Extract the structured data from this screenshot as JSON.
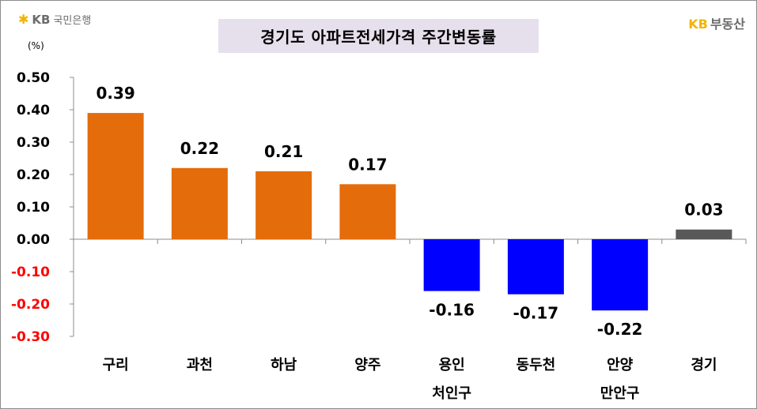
{
  "logos": {
    "left_brand": "KB",
    "left_name": "국민은행",
    "right_brand": "KB",
    "right_name": "부동산"
  },
  "chart_data": {
    "type": "bar",
    "title": "경기도 아파트전세가격 주간변동률",
    "unit_label": "(%)",
    "categories": [
      [
        "구리"
      ],
      [
        "과천"
      ],
      [
        "하남"
      ],
      [
        "양주"
      ],
      [
        "용인",
        "처인구"
      ],
      [
        "동두천"
      ],
      [
        "안양",
        "만안구"
      ],
      [
        "경기"
      ]
    ],
    "values": [
      0.39,
      0.22,
      0.21,
      0.17,
      -0.16,
      -0.17,
      -0.22,
      0.03
    ],
    "value_labels": [
      "0.39",
      "0.22",
      "0.21",
      "0.17",
      "-0.16",
      "-0.17",
      "-0.22",
      "0.03"
    ],
    "bar_colors": [
      "#e46c0a",
      "#e46c0a",
      "#e46c0a",
      "#e46c0a",
      "#0000ff",
      "#0000ff",
      "#0000ff",
      "#595959"
    ],
    "ylim": [
      -0.3,
      0.5
    ],
    "yticks": [
      0.5,
      0.4,
      0.3,
      0.2,
      0.1,
      0.0,
      -0.1,
      -0.2,
      -0.3
    ],
    "ytick_labels": [
      "0.50",
      "0.40",
      "0.30",
      "0.20",
      "0.10",
      "0.00",
      "-0.10",
      "-0.20",
      "-0.30"
    ],
    "positive_tick_color": "#000000",
    "negative_tick_color": "#ff0000",
    "grid": false
  }
}
